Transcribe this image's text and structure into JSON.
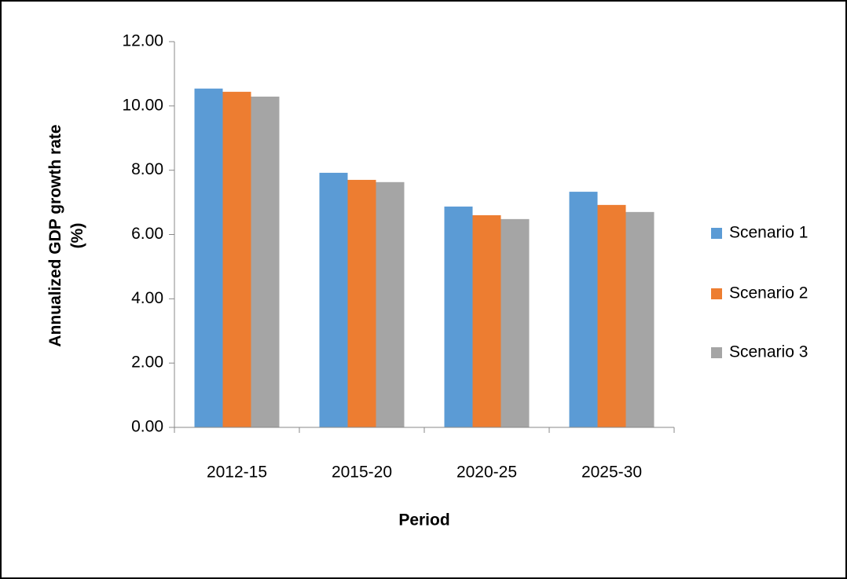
{
  "chart_data": {
    "type": "bar",
    "y_label": "Annualized GDP growth rate (%)",
    "x_label": "Period",
    "categories": [
      "2012-15",
      "2015-20",
      "2020-25",
      "2025-30"
    ],
    "series": [
      {
        "name": "Scenario 1",
        "color": "#5b9bd5",
        "values": [
          10.54,
          7.92,
          6.87,
          7.33
        ]
      },
      {
        "name": "Scenario 2",
        "color": "#ed7d31",
        "values": [
          10.44,
          7.7,
          6.6,
          6.92
        ]
      },
      {
        "name": "Scenario 3",
        "color": "#a5a5a5",
        "values": [
          10.29,
          7.63,
          6.48,
          6.7
        ]
      }
    ],
    "ylim": [
      0,
      12
    ],
    "yticks": [
      {
        "value": 0,
        "label": "0.00"
      },
      {
        "value": 2,
        "label": "2.00"
      },
      {
        "value": 4,
        "label": "4.00"
      },
      {
        "value": 6,
        "label": "6.00"
      },
      {
        "value": 8,
        "label": "8.00"
      },
      {
        "value": 10,
        "label": "10.00"
      },
      {
        "value": 12,
        "label": "12.00"
      }
    ],
    "grid": false,
    "legend": "right"
  }
}
